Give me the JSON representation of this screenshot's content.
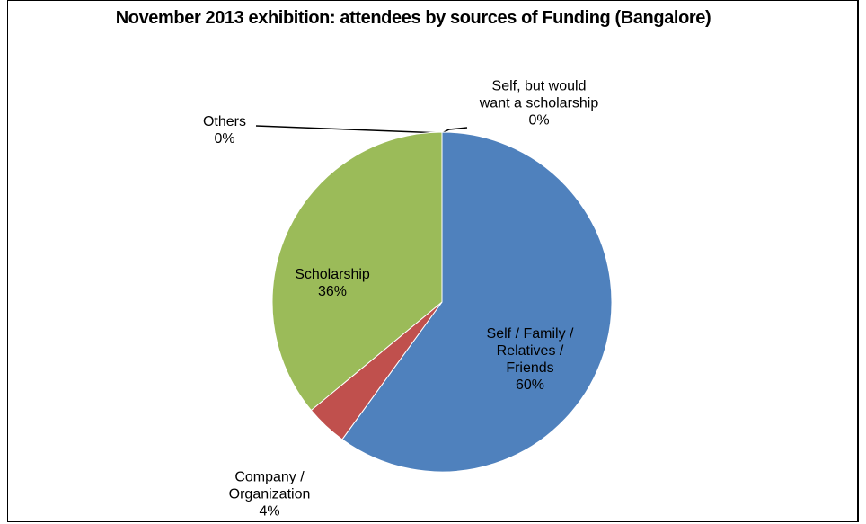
{
  "chart_data": {
    "type": "pie",
    "title": "November 2013 exhibition: attendees by sources of Funding (Bangalore)",
    "categories": [
      "Self / Family / Relatives / Friends",
      "Company / Organization",
      "Scholarship",
      "Others",
      "Self, but would want a scholarship"
    ],
    "values": [
      60,
      4,
      36,
      0,
      0
    ],
    "value_labels": [
      "60%",
      "4%",
      "36%",
      "0%",
      "0%"
    ],
    "colors": [
      "#4f81bd",
      "#c0504d",
      "#9bbb59",
      "#8064a2",
      "#4bacc6"
    ]
  }
}
